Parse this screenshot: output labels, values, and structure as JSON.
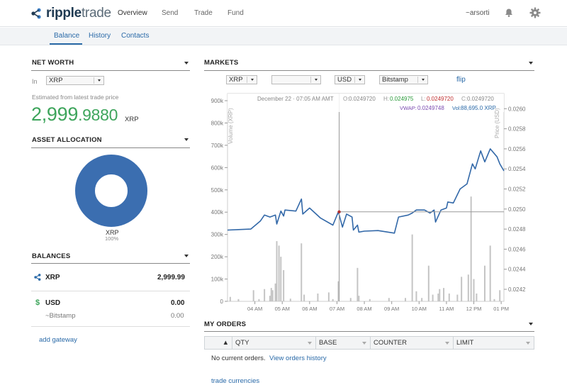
{
  "header": {
    "logo": {
      "bold": "ripple",
      "light": "trade"
    },
    "nav": [
      "Overview",
      "Send",
      "Trade",
      "Fund"
    ],
    "user": "~arsorti",
    "icons": [
      "bell-icon",
      "gear-icon"
    ]
  },
  "subnav": {
    "items": [
      "Balance",
      "History",
      "Contacts"
    ],
    "active": "Balance"
  },
  "net_worth": {
    "title": "NET WORTH",
    "in_label": "In",
    "currency": "XRP",
    "note": "Estimated from latest trade price",
    "value_int": "2,999",
    "value_frac": ".9880",
    "unit": "XRP"
  },
  "asset_allocation": {
    "title": "ASSET ALLOCATION",
    "label": "XRP",
    "pct": "100%",
    "color": "#3b6eb0"
  },
  "balances": {
    "title": "BALANCES",
    "rows": [
      {
        "currency": "XRP",
        "amount": "2,999.99"
      },
      {
        "currency": "USD",
        "amount": "0.00"
      }
    ],
    "gateway": {
      "name": "~Bitstamp",
      "amount": "0.00"
    },
    "add_gateway": "add gateway"
  },
  "markets": {
    "title": "MARKETS",
    "base": "XRP",
    "second": "",
    "counter": "USD",
    "issuer": "Bitstamp",
    "flip": "flip",
    "info": {
      "datetime": "December 22 · 07:05 AM AMT",
      "o_label": "O:",
      "o": "0.0249720",
      "h_label": "H:",
      "h": "0.024975",
      "l_label": "L:",
      "l": "0.0249720",
      "c_label": "C:",
      "c": "0.0249720",
      "vwap_label": "VWAP:",
      "vwap": "0.0249748",
      "vol_label": "Vol:",
      "vol": "88,695.0 XRP"
    }
  },
  "chart_data": {
    "type": "line",
    "xlabel": "",
    "y_left_label": "Volume (XRP)",
    "y_right_label": "Price (USD)",
    "x_ticks": [
      "04 AM",
      "05 AM",
      "06 AM",
      "07 AM",
      "08 AM",
      "09 AM",
      "10 AM",
      "11 AM",
      "12 PM",
      "01 PM"
    ],
    "x_range": [
      3.0,
      13.1
    ],
    "y_left_ticks": [
      "0",
      "100k",
      "200k",
      "300k",
      "400k",
      "500k",
      "600k",
      "700k",
      "800k",
      "900k"
    ],
    "y_left_range": [
      0,
      900000
    ],
    "y_right_ticks": [
      "0.0242",
      "0.0244",
      "0.0246",
      "0.0248",
      "0.0250",
      "0.0252",
      "0.0254",
      "0.0256",
      "0.0258",
      "0.0260"
    ],
    "y_right_range": [
      0.02408,
      0.02608
    ],
    "crosshair": {
      "x": 7.08,
      "price": 0.024972
    },
    "price_series": [
      [
        3.0,
        0.02479
      ],
      [
        3.4,
        0.024795
      ],
      [
        3.85,
        0.0248
      ],
      [
        4.2,
        0.02488
      ],
      [
        4.35,
        0.02494
      ],
      [
        4.55,
        0.02492
      ],
      [
        4.75,
        0.02494
      ],
      [
        4.8,
        0.02485
      ],
      [
        4.95,
        0.02498
      ],
      [
        5.05,
        0.02493
      ],
      [
        5.1,
        0.02499
      ],
      [
        5.5,
        0.02498
      ],
      [
        5.7,
        0.0251
      ],
      [
        5.75,
        0.02495
      ],
      [
        6.0,
        0.02501
      ],
      [
        6.4,
        0.02491
      ],
      [
        6.85,
        0.02484
      ],
      [
        7.05,
        0.024972
      ],
      [
        7.2,
        0.02482
      ],
      [
        7.35,
        0.02495
      ],
      [
        7.55,
        0.02492
      ],
      [
        7.6,
        0.02479
      ],
      [
        7.75,
        0.02484
      ],
      [
        7.8,
        0.02477
      ],
      [
        8.0,
        0.02478
      ],
      [
        8.5,
        0.024785
      ],
      [
        9.1,
        0.02476
      ],
      [
        9.25,
        0.02492
      ],
      [
        9.6,
        0.02494
      ],
      [
        9.75,
        0.02496
      ],
      [
        9.9,
        0.02499
      ],
      [
        10.2,
        0.02499
      ],
      [
        10.4,
        0.02496
      ],
      [
        10.55,
        0.02499
      ],
      [
        10.6,
        0.02487
      ],
      [
        10.8,
        0.02499
      ],
      [
        11.0,
        0.02501
      ],
      [
        11.05,
        0.02507
      ],
      [
        11.25,
        0.02506
      ],
      [
        11.5,
        0.0252
      ],
      [
        11.75,
        0.02525
      ],
      [
        11.95,
        0.02545
      ],
      [
        12.05,
        0.0254
      ],
      [
        12.25,
        0.02558
      ],
      [
        12.4,
        0.02547
      ],
      [
        12.6,
        0.0256
      ],
      [
        12.85,
        0.02552
      ],
      [
        12.95,
        0.02545
      ],
      [
        13.1,
        0.02538
      ]
    ],
    "volume_bars": [
      [
        3.1,
        20000
      ],
      [
        3.4,
        10000
      ],
      [
        3.95,
        50000
      ],
      [
        4.15,
        10000
      ],
      [
        4.35,
        55000
      ],
      [
        4.55,
        25000
      ],
      [
        4.6,
        60000
      ],
      [
        4.65,
        50000
      ],
      [
        4.75,
        80000
      ],
      [
        4.8,
        270000
      ],
      [
        4.88,
        250000
      ],
      [
        4.95,
        200000
      ],
      [
        5.05,
        140000
      ],
      [
        5.3,
        12000
      ],
      [
        5.7,
        260000
      ],
      [
        5.8,
        30000
      ],
      [
        6.3,
        35000
      ],
      [
        6.7,
        40000
      ],
      [
        6.85,
        10000
      ],
      [
        7.05,
        90000
      ],
      [
        7.5,
        15000
      ],
      [
        7.75,
        150000
      ],
      [
        7.8,
        25000
      ],
      [
        8.2,
        10000
      ],
      [
        8.9,
        15000
      ],
      [
        9.5,
        15000
      ],
      [
        9.75,
        300000
      ],
      [
        9.9,
        45000
      ],
      [
        10.1,
        15000
      ],
      [
        10.35,
        160000
      ],
      [
        10.5,
        30000
      ],
      [
        10.7,
        35000
      ],
      [
        10.75,
        55000
      ],
      [
        10.9,
        60000
      ],
      [
        11.1,
        35000
      ],
      [
        11.4,
        30000
      ],
      [
        11.55,
        110000
      ],
      [
        11.8,
        120000
      ],
      [
        11.9,
        470000
      ],
      [
        12.0,
        100000
      ],
      [
        12.1,
        35000
      ],
      [
        12.4,
        160000
      ],
      [
        12.6,
        250000
      ],
      [
        12.75,
        10000
      ],
      [
        12.95,
        50000
      ]
    ]
  },
  "orders": {
    "title": "MY ORDERS",
    "columns": [
      "QTY",
      "BASE",
      "COUNTER",
      "LIMIT"
    ],
    "sort_glyph": "▲",
    "empty": "No current orders.",
    "history_link": "View orders history",
    "trade_link": "trade currencies"
  }
}
